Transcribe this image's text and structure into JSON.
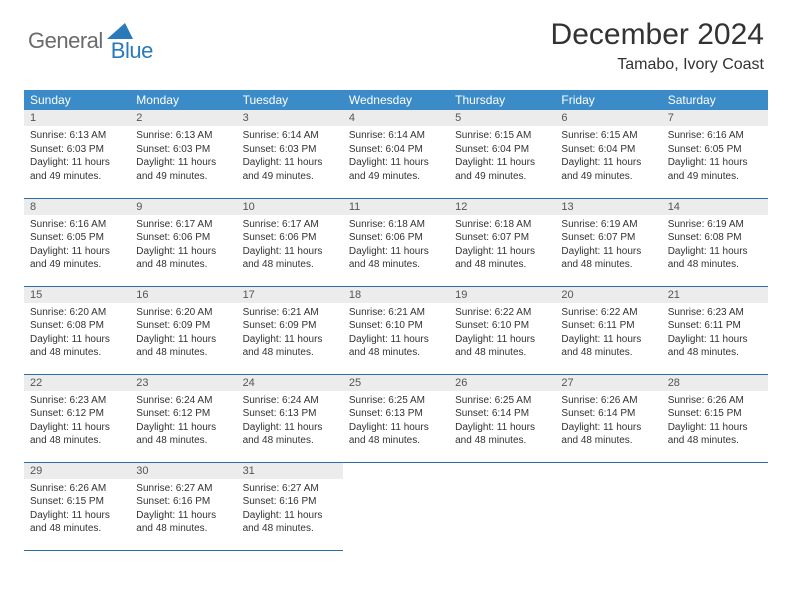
{
  "logo": {
    "general": "General",
    "blue": "Blue"
  },
  "title": "December 2024",
  "location": "Tamabo, Ivory Coast",
  "weekdays": [
    "Sunday",
    "Monday",
    "Tuesday",
    "Wednesday",
    "Thursday",
    "Friday",
    "Saturday"
  ],
  "colors": {
    "header_bg": "#3b8bc9",
    "daynum_bg": "#ececec",
    "row_border": "#2e6da4",
    "logo_gray": "#6b6b6b",
    "logo_blue": "#2a7ab9",
    "text": "#333333"
  },
  "days": [
    {
      "n": 1,
      "sunrise": "6:13 AM",
      "sunset": "6:03 PM",
      "daylight": "11 hours and 49 minutes."
    },
    {
      "n": 2,
      "sunrise": "6:13 AM",
      "sunset": "6:03 PM",
      "daylight": "11 hours and 49 minutes."
    },
    {
      "n": 3,
      "sunrise": "6:14 AM",
      "sunset": "6:03 PM",
      "daylight": "11 hours and 49 minutes."
    },
    {
      "n": 4,
      "sunrise": "6:14 AM",
      "sunset": "6:04 PM",
      "daylight": "11 hours and 49 minutes."
    },
    {
      "n": 5,
      "sunrise": "6:15 AM",
      "sunset": "6:04 PM",
      "daylight": "11 hours and 49 minutes."
    },
    {
      "n": 6,
      "sunrise": "6:15 AM",
      "sunset": "6:04 PM",
      "daylight": "11 hours and 49 minutes."
    },
    {
      "n": 7,
      "sunrise": "6:16 AM",
      "sunset": "6:05 PM",
      "daylight": "11 hours and 49 minutes."
    },
    {
      "n": 8,
      "sunrise": "6:16 AM",
      "sunset": "6:05 PM",
      "daylight": "11 hours and 49 minutes."
    },
    {
      "n": 9,
      "sunrise": "6:17 AM",
      "sunset": "6:06 PM",
      "daylight": "11 hours and 48 minutes."
    },
    {
      "n": 10,
      "sunrise": "6:17 AM",
      "sunset": "6:06 PM",
      "daylight": "11 hours and 48 minutes."
    },
    {
      "n": 11,
      "sunrise": "6:18 AM",
      "sunset": "6:06 PM",
      "daylight": "11 hours and 48 minutes."
    },
    {
      "n": 12,
      "sunrise": "6:18 AM",
      "sunset": "6:07 PM",
      "daylight": "11 hours and 48 minutes."
    },
    {
      "n": 13,
      "sunrise": "6:19 AM",
      "sunset": "6:07 PM",
      "daylight": "11 hours and 48 minutes."
    },
    {
      "n": 14,
      "sunrise": "6:19 AM",
      "sunset": "6:08 PM",
      "daylight": "11 hours and 48 minutes."
    },
    {
      "n": 15,
      "sunrise": "6:20 AM",
      "sunset": "6:08 PM",
      "daylight": "11 hours and 48 minutes."
    },
    {
      "n": 16,
      "sunrise": "6:20 AM",
      "sunset": "6:09 PM",
      "daylight": "11 hours and 48 minutes."
    },
    {
      "n": 17,
      "sunrise": "6:21 AM",
      "sunset": "6:09 PM",
      "daylight": "11 hours and 48 minutes."
    },
    {
      "n": 18,
      "sunrise": "6:21 AM",
      "sunset": "6:10 PM",
      "daylight": "11 hours and 48 minutes."
    },
    {
      "n": 19,
      "sunrise": "6:22 AM",
      "sunset": "6:10 PM",
      "daylight": "11 hours and 48 minutes."
    },
    {
      "n": 20,
      "sunrise": "6:22 AM",
      "sunset": "6:11 PM",
      "daylight": "11 hours and 48 minutes."
    },
    {
      "n": 21,
      "sunrise": "6:23 AM",
      "sunset": "6:11 PM",
      "daylight": "11 hours and 48 minutes."
    },
    {
      "n": 22,
      "sunrise": "6:23 AM",
      "sunset": "6:12 PM",
      "daylight": "11 hours and 48 minutes."
    },
    {
      "n": 23,
      "sunrise": "6:24 AM",
      "sunset": "6:12 PM",
      "daylight": "11 hours and 48 minutes."
    },
    {
      "n": 24,
      "sunrise": "6:24 AM",
      "sunset": "6:13 PM",
      "daylight": "11 hours and 48 minutes."
    },
    {
      "n": 25,
      "sunrise": "6:25 AM",
      "sunset": "6:13 PM",
      "daylight": "11 hours and 48 minutes."
    },
    {
      "n": 26,
      "sunrise": "6:25 AM",
      "sunset": "6:14 PM",
      "daylight": "11 hours and 48 minutes."
    },
    {
      "n": 27,
      "sunrise": "6:26 AM",
      "sunset": "6:14 PM",
      "daylight": "11 hours and 48 minutes."
    },
    {
      "n": 28,
      "sunrise": "6:26 AM",
      "sunset": "6:15 PM",
      "daylight": "11 hours and 48 minutes."
    },
    {
      "n": 29,
      "sunrise": "6:26 AM",
      "sunset": "6:15 PM",
      "daylight": "11 hours and 48 minutes."
    },
    {
      "n": 30,
      "sunrise": "6:27 AM",
      "sunset": "6:16 PM",
      "daylight": "11 hours and 48 minutes."
    },
    {
      "n": 31,
      "sunrise": "6:27 AM",
      "sunset": "6:16 PM",
      "daylight": "11 hours and 48 minutes."
    }
  ],
  "labels": {
    "sunrise": "Sunrise:",
    "sunset": "Sunset:",
    "daylight": "Daylight:"
  },
  "start_weekday_index": 0
}
